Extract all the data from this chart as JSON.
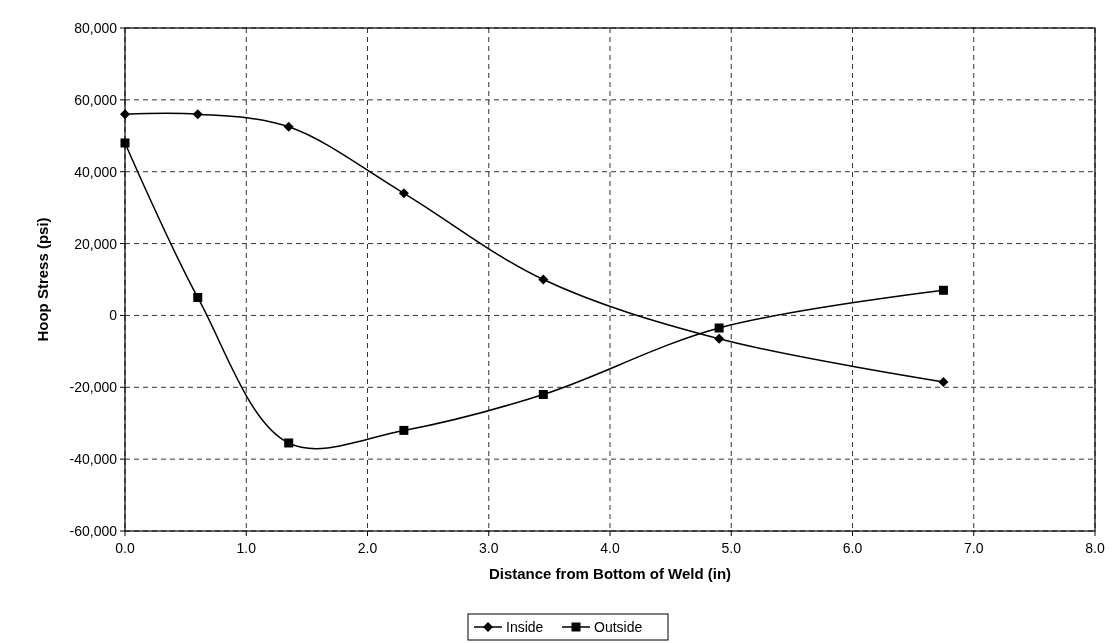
{
  "chart_data": {
    "type": "line",
    "xlabel": "Distance from Bottom of Weld (in)",
    "ylabel": "Hoop Stress (psi)",
    "xlim": [
      0,
      8
    ],
    "xticks": [
      {
        "value": 0,
        "label": "0.0"
      },
      {
        "value": 1,
        "label": "1.0"
      },
      {
        "value": 2,
        "label": "2.0"
      },
      {
        "value": 3,
        "label": "3.0"
      },
      {
        "value": 4,
        "label": "4.0"
      },
      {
        "value": 5,
        "label": "5.0"
      },
      {
        "value": 6,
        "label": "6.0"
      },
      {
        "value": 7,
        "label": "7.0"
      },
      {
        "value": 8,
        "label": "8.0"
      }
    ],
    "ylim": [
      -60000,
      80000
    ],
    "yticks": [
      {
        "value": -60000,
        "label": "-60,000"
      },
      {
        "value": -40000,
        "label": "-40,000"
      },
      {
        "value": -20000,
        "label": "-20,000"
      },
      {
        "value": 0,
        "label": "0"
      },
      {
        "value": 20000,
        "label": "20,000"
      },
      {
        "value": 40000,
        "label": "40,000"
      },
      {
        "value": 60000,
        "label": "60,000"
      },
      {
        "value": 80000,
        "label": "80,000"
      }
    ],
    "grid": true,
    "legend": "bottom",
    "series": [
      {
        "name": "Inside",
        "color": "#000000",
        "marker": "diamond",
        "x": [
          0,
          0.6,
          1.35,
          2.3,
          3.45,
          4.9,
          6.75
        ],
        "values": [
          56000,
          56000,
          52500,
          34000,
          10000,
          -6500,
          -18500
        ]
      },
      {
        "name": "Outside",
        "color": "#000000",
        "marker": "square",
        "x": [
          0,
          0.6,
          1.35,
          2.3,
          3.45,
          4.9,
          6.75
        ],
        "values": [
          48000,
          5000,
          -35500,
          -32000,
          -22000,
          -3500,
          7000
        ]
      }
    ]
  }
}
